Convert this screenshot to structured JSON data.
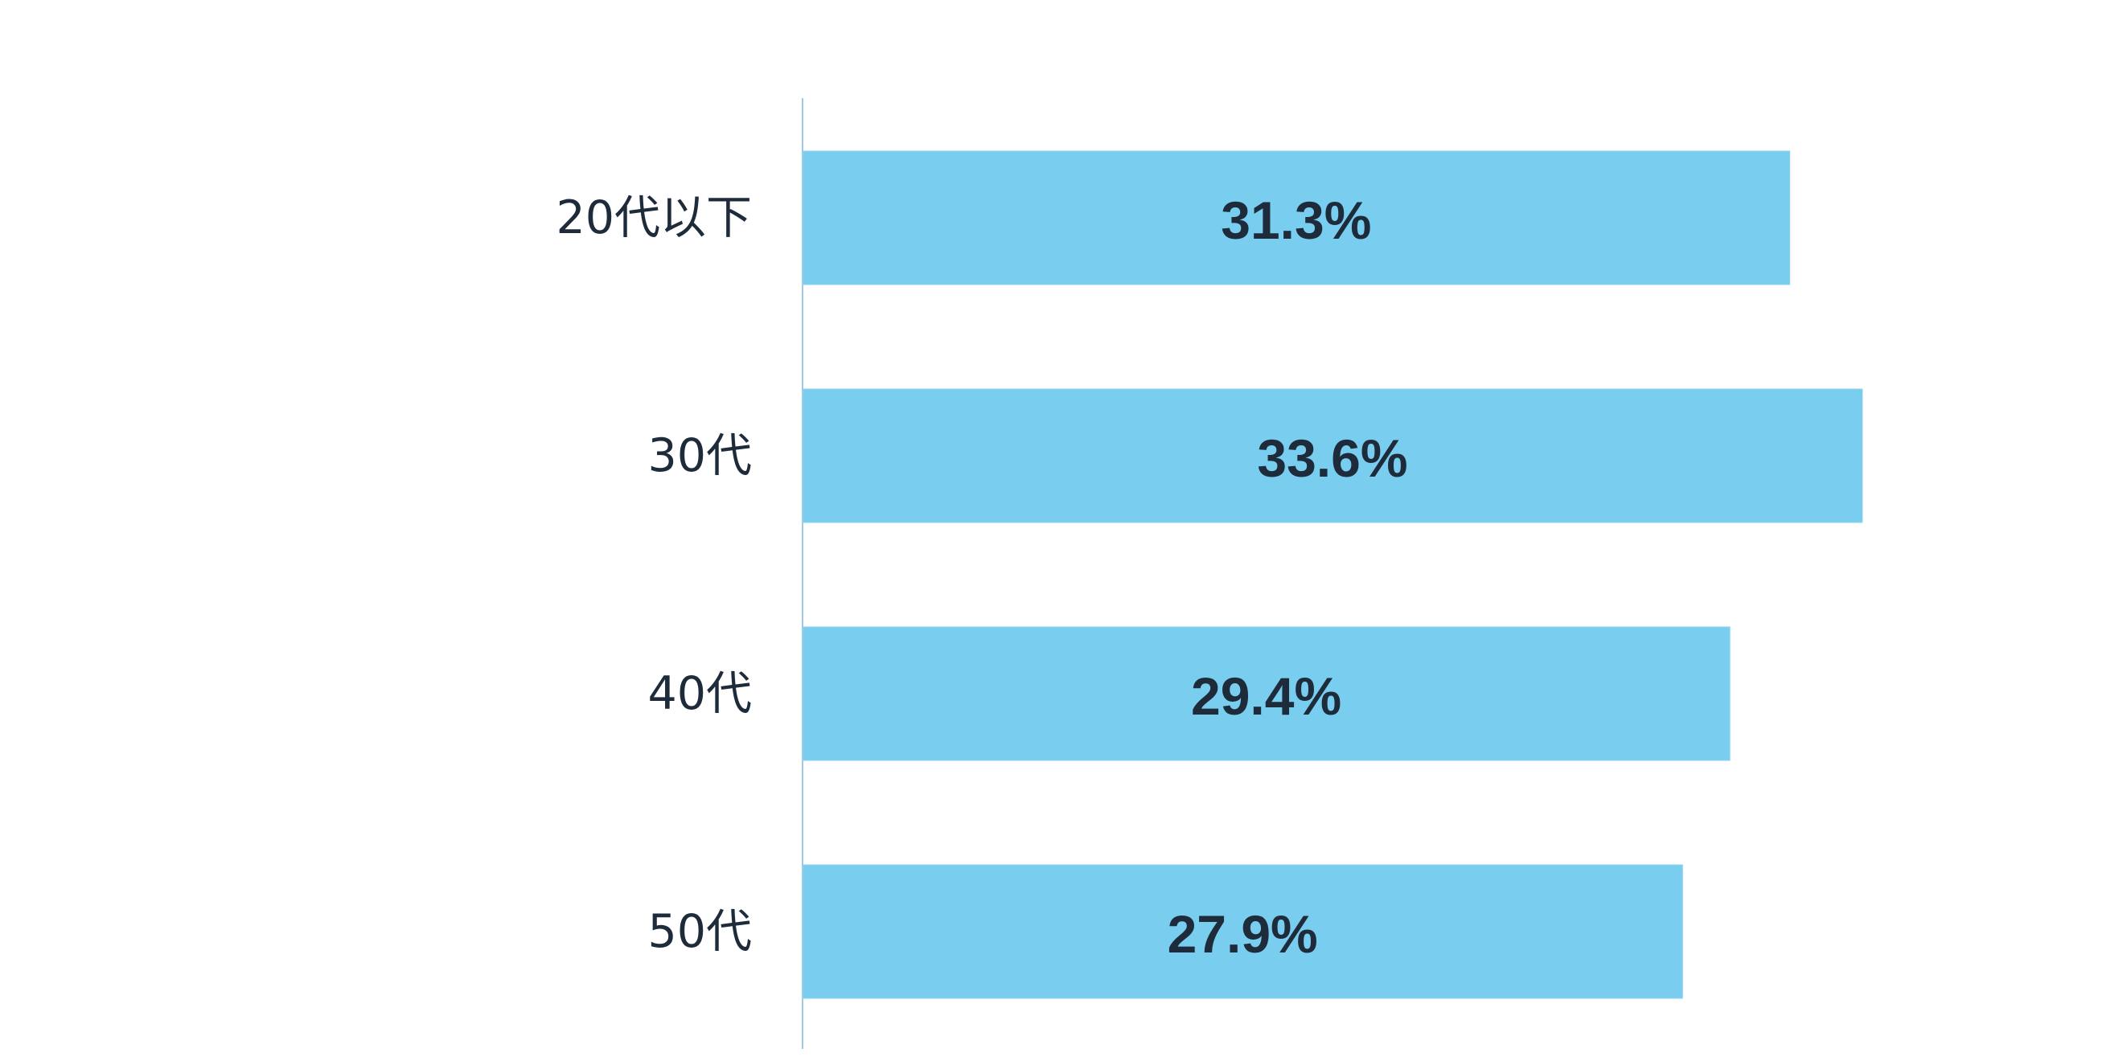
{
  "chart_data": {
    "type": "bar",
    "orientation": "horizontal",
    "categories": [
      "20代以下",
      "30代",
      "40代",
      "50代"
    ],
    "values": [
      31.3,
      33.6,
      29.4,
      27.9
    ],
    "value_labels": [
      "31.3%",
      "33.6%",
      "29.4%",
      "27.9%"
    ],
    "unit": "%",
    "xlim": [
      0,
      36
    ],
    "title": "",
    "xlabel": "",
    "ylabel": "",
    "grid": false,
    "legend": "none",
    "colors": {
      "bar": "#79cdef",
      "bar_edge": "#8fd3ee",
      "axis": "#9ccbe3",
      "text": "#1d2b3a",
      "background": "#ffffff"
    }
  }
}
